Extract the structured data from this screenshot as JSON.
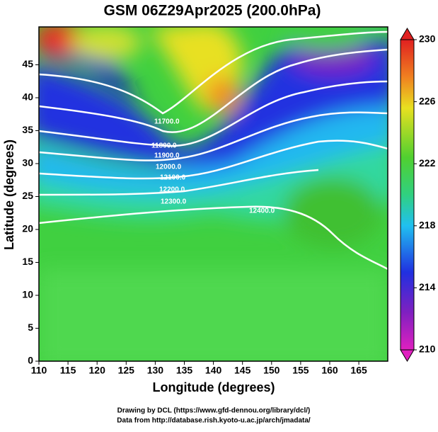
{
  "title": "GSM 06Z29Apr2025 (200.0hPa)",
  "x_axis": {
    "label": "Longitude (degrees)",
    "ticks": [
      "110",
      "115",
      "120",
      "125",
      "130",
      "135",
      "140",
      "145",
      "150",
      "155",
      "160",
      "165"
    ]
  },
  "y_axis": {
    "label": "Latitude  (degrees)",
    "ticks": [
      "0",
      "5",
      "10",
      "15",
      "20",
      "25",
      "30",
      "35",
      "40",
      "45"
    ]
  },
  "colorbar": {
    "ticks": [
      "230",
      "226",
      "222",
      "218",
      "214",
      "210"
    ]
  },
  "contour_labels": [
    "11700.0",
    "11800.0",
    "11900.0",
    "12000.0",
    "12100.0",
    "12200.0",
    "12300.0",
    "12400.0"
  ],
  "credits": [
    "Drawing by DCL (https://www.gfd-dennou.org/library/dcl/)",
    "Data from http://database.rish.kyoto-u.ac.jp/arch/jmadata/"
  ]
}
